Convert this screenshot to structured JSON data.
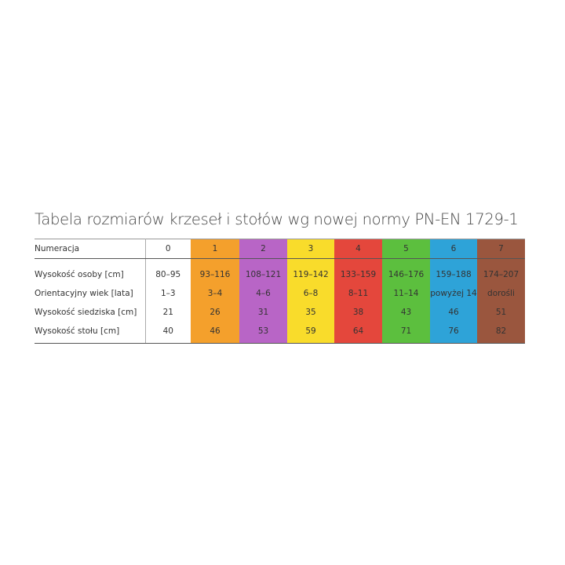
{
  "title": "Tabela rozmiarów krzeseł i stołów wg nowej normy PN-EN 1729-1",
  "colors": [
    "#ffffff",
    "#f4a02c",
    "#b865c6",
    "#f9dc2b",
    "#e4473c",
    "#5cbf3e",
    "#2ea3d8",
    "#9a563e"
  ],
  "table": {
    "header": {
      "label": "Numeracja",
      "values": [
        "0",
        "1",
        "2",
        "3",
        "4",
        "5",
        "6",
        "7"
      ]
    },
    "rows": [
      {
        "label": "Wysokość osoby [cm]",
        "values": [
          "80–95",
          "93–116",
          "108–121",
          "119–142",
          "133–159",
          "146–176",
          "159–188",
          "174–207"
        ]
      },
      {
        "label": "Orientacyjny wiek [lata]",
        "values": [
          "1–3",
          "3–4",
          "4–6",
          "6–8",
          "8–11",
          "11–14",
          "powyżej 14",
          "dorośli"
        ]
      },
      {
        "label": "Wysokość siedziska [cm]",
        "values": [
          "21",
          "26",
          "31",
          "35",
          "38",
          "43",
          "46",
          "51"
        ]
      },
      {
        "label": "Wysokość stołu [cm]",
        "values": [
          "40",
          "46",
          "53",
          "59",
          "64",
          "71",
          "76",
          "82"
        ]
      }
    ]
  }
}
